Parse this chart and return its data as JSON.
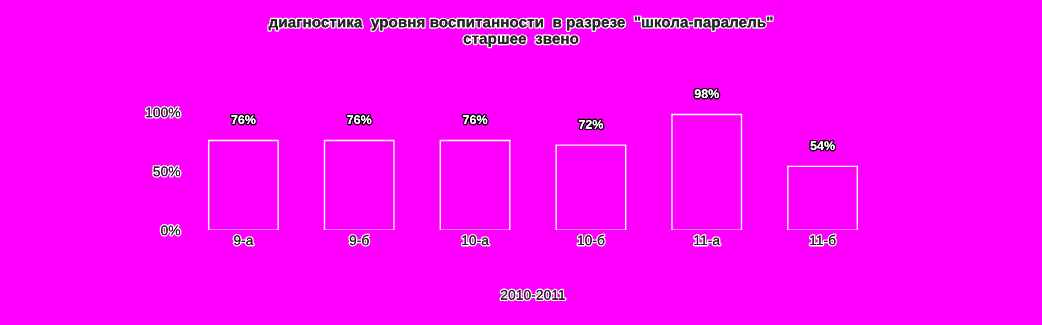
{
  "chart_data": {
    "type": "bar",
    "title": "диагностика  уровня воспитанности  в разрезе  \"школа-паралель\"\nстаршее  звено",
    "xlabel": "2010-2011",
    "categories": [
      "9-а",
      "9-б",
      "10-а",
      "10-б",
      "11-а",
      "11-б"
    ],
    "values": [
      76,
      76,
      76,
      72,
      98,
      54
    ],
    "value_labels": [
      "76%",
      "76%",
      "76%",
      "72%",
      "98%",
      "54%"
    ],
    "color": "#ff00ff",
    "ylim": [
      0,
      100
    ],
    "yticks": [
      {
        "value": 0,
        "label": "0%"
      },
      {
        "value": 50,
        "label": "50%"
      },
      {
        "value": 100,
        "label": "100%"
      }
    ],
    "grid": false,
    "legend": false
  }
}
